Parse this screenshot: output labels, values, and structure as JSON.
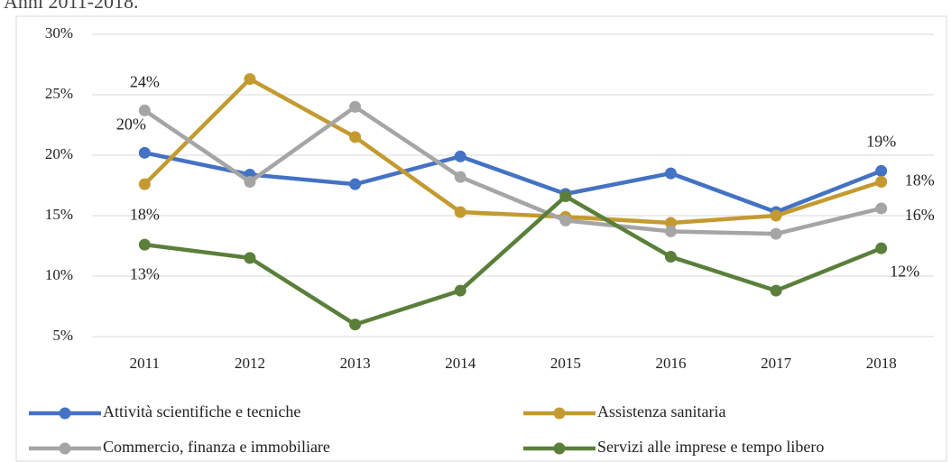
{
  "chart_data": {
    "type": "line",
    "title": "Anni 2011-2018.",
    "categories": [
      "2011",
      "2012",
      "2013",
      "2014",
      "2015",
      "2016",
      "2017",
      "2018"
    ],
    "ylim": [
      5,
      30
    ],
    "yticks": [
      {
        "value": 5,
        "label": "5%"
      },
      {
        "value": 10,
        "label": "10%"
      },
      {
        "value": 15,
        "label": "15%"
      },
      {
        "value": 20,
        "label": "20%"
      },
      {
        "value": 25,
        "label": "25%"
      },
      {
        "value": 30,
        "label": "30%"
      }
    ],
    "grid": true,
    "series": [
      {
        "name": "Attività scientifiche e tecniche",
        "color": "#4472c4",
        "values": [
          20.2,
          18.4,
          17.6,
          19.9,
          16.8,
          18.5,
          15.3,
          18.7
        ],
        "value_labels": [
          "20%",
          null,
          null,
          null,
          null,
          null,
          null,
          "19%"
        ]
      },
      {
        "name": "Assistenza sanitaria",
        "color": "#c49a30",
        "values": [
          17.6,
          26.3,
          21.5,
          15.3,
          14.9,
          14.4,
          15.0,
          17.8
        ],
        "value_labels": [
          "18%",
          null,
          null,
          null,
          null,
          null,
          null,
          "18%"
        ]
      },
      {
        "name": "Commercio, finanza e immobiliare",
        "color": "#a5a5a5",
        "values": [
          23.7,
          17.8,
          24.0,
          18.2,
          14.6,
          13.7,
          13.5,
          15.6
        ],
        "value_labels": [
          "24%",
          null,
          null,
          null,
          null,
          null,
          null,
          "16%"
        ]
      },
      {
        "name": "Servizi alle imprese e tempo libero",
        "color": "#5a7f3a",
        "values": [
          12.6,
          11.5,
          6.0,
          8.8,
          16.6,
          11.6,
          8.8,
          12.3
        ],
        "value_labels": [
          "13%",
          null,
          null,
          null,
          null,
          null,
          null,
          "12%"
        ]
      }
    ]
  }
}
